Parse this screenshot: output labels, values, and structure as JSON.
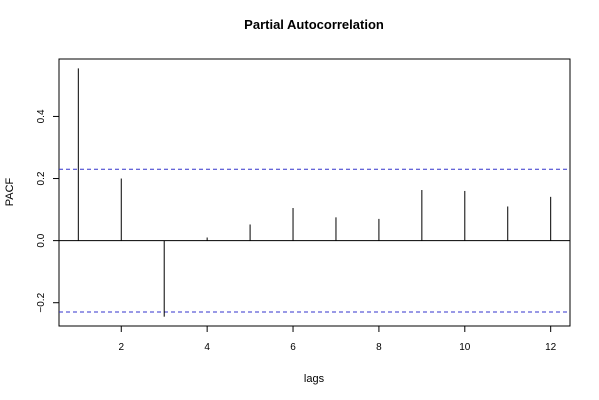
{
  "chart_data": {
    "type": "bar",
    "title": "Partial Autocorrelation",
    "xlabel": "lags",
    "ylabel": "PACF",
    "x": [
      1,
      2,
      3,
      4,
      5,
      6,
      7,
      8,
      9,
      10,
      11,
      12
    ],
    "values": [
      0.555,
      0.2,
      -0.245,
      0.01,
      0.052,
      0.105,
      0.075,
      0.07,
      0.163,
      0.16,
      0.11,
      0.141
    ],
    "xlim": [
      0.55,
      12.45
    ],
    "ylim": [
      -0.275,
      0.585
    ],
    "xticks": [
      2,
      4,
      6,
      8,
      10,
      12
    ],
    "yticks": [
      -0.2,
      0.0,
      0.2,
      0.4
    ],
    "xtick_labels": [
      "2",
      "4",
      "6",
      "8",
      "10",
      "12"
    ],
    "ytick_labels": [
      "−0.2",
      "0.0",
      "0.2",
      "0.4"
    ],
    "confidence_bounds": [
      0.23,
      -0.23
    ],
    "confidence_color": "#3333cc",
    "bar_color": "#000000",
    "grid": false
  }
}
